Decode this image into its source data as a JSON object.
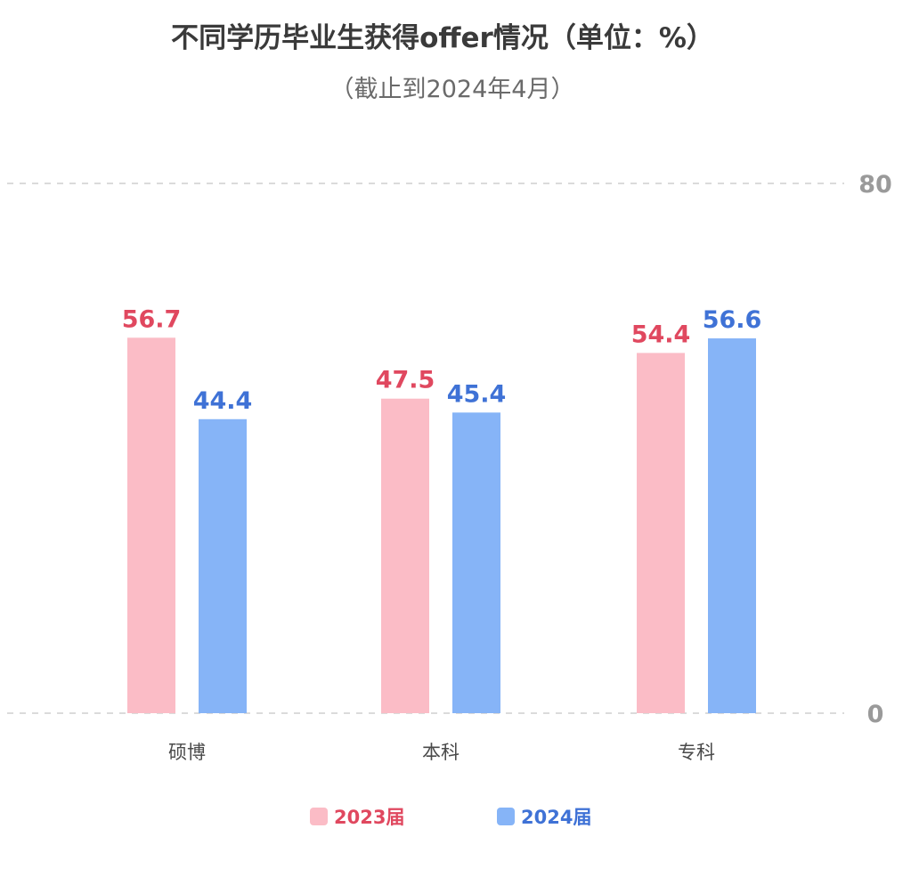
{
  "chart_data": {
    "type": "bar",
    "title": "不同学历毕业生获得offer情况（单位：%）",
    "subtitle": "（截止到2024年4月）",
    "categories": [
      "硕博",
      "本科",
      "专科"
    ],
    "series": [
      {
        "name": "2023届",
        "values": [
          56.7,
          47.5,
          54.4
        ],
        "color": "#fbbcc6",
        "label_color": "#e0485f"
      },
      {
        "name": "2024届",
        "values": [
          44.4,
          45.4,
          56.6
        ],
        "color": "#86b4f7",
        "label_color": "#3f72d6"
      }
    ],
    "ylim": [
      0,
      80
    ],
    "yticks": [
      "0",
      "80"
    ],
    "grid": true,
    "legend_position": "bottom-center"
  }
}
